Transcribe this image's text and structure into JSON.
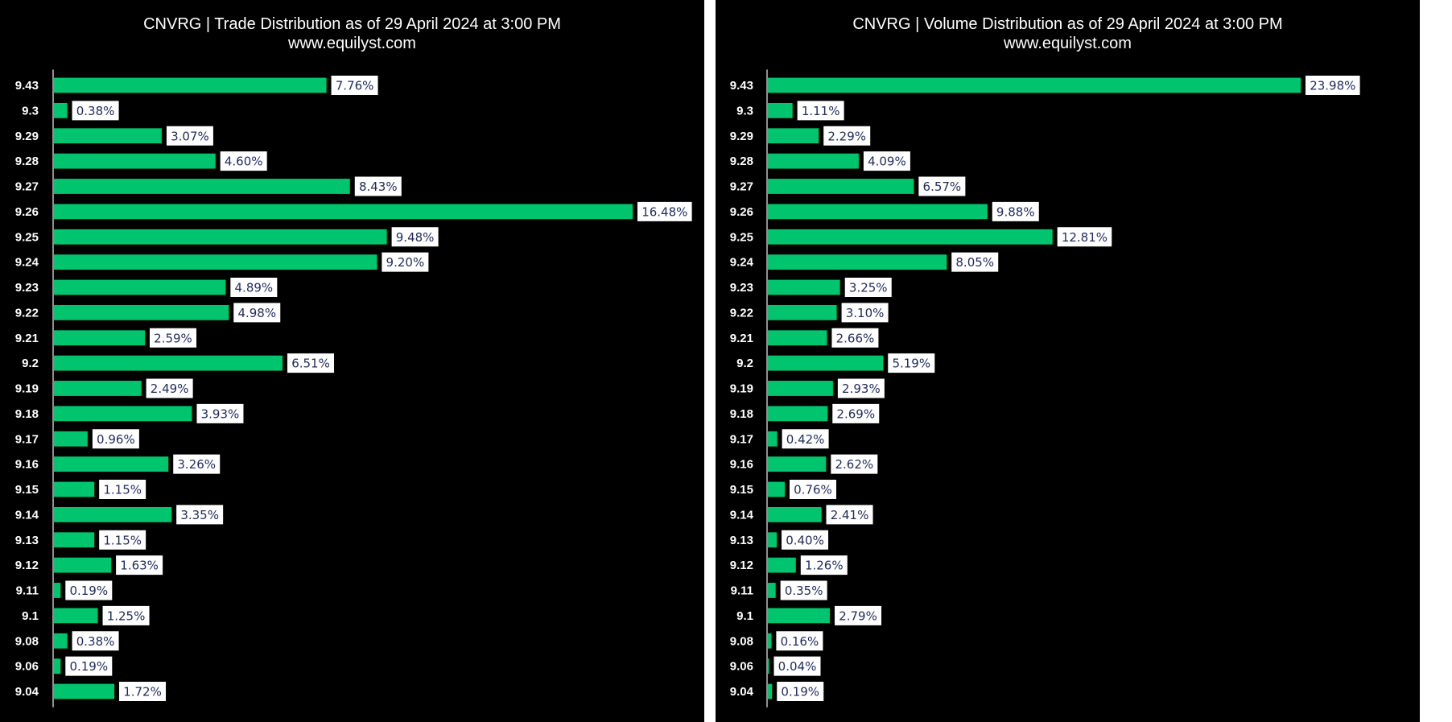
{
  "chart_data": [
    {
      "type": "bar",
      "orientation": "horizontal",
      "title": "CNVRG | Trade Distribution as of 29 April 2024 at 3:00 PM",
      "subtitle": "www.equilyst.com",
      "categories": [
        "9.43",
        "9.3",
        "9.29",
        "9.28",
        "9.27",
        "9.26",
        "9.25",
        "9.24",
        "9.23",
        "9.22",
        "9.21",
        "9.2",
        "9.19",
        "9.18",
        "9.17",
        "9.16",
        "9.15",
        "9.14",
        "9.13",
        "9.12",
        "9.11",
        "9.1",
        "9.08",
        "9.06",
        "9.04"
      ],
      "values": [
        7.76,
        0.38,
        3.07,
        4.6,
        8.43,
        16.48,
        9.48,
        9.2,
        4.89,
        4.98,
        2.59,
        6.51,
        2.49,
        3.93,
        0.96,
        3.26,
        1.15,
        3.35,
        1.15,
        1.63,
        0.19,
        1.25,
        0.38,
        0.19,
        1.72
      ],
      "data_labels": [
        "7.76%",
        "0.38%",
        "3.07%",
        "4.60%",
        "8.43%",
        "16.48%",
        "9.48%",
        "9.20%",
        "4.89%",
        "4.98%",
        "2.59%",
        "6.51%",
        "2.49%",
        "3.93%",
        "0.96%",
        "3.26%",
        "1.15%",
        "3.35%",
        "1.15%",
        "1.63%",
        "0.19%",
        "1.25%",
        "0.38%",
        "0.19%",
        "1.72%"
      ],
      "xlim": [
        0,
        16.48
      ],
      "grid": false,
      "legend": "none",
      "bar_color": "#00c46e"
    },
    {
      "type": "bar",
      "orientation": "horizontal",
      "title": "CNVRG | Volume Distribution as of 29 April 2024 at 3:00 PM",
      "subtitle": "www.equilyst.com",
      "categories": [
        "9.43",
        "9.3",
        "9.29",
        "9.28",
        "9.27",
        "9.26",
        "9.25",
        "9.24",
        "9.23",
        "9.22",
        "9.21",
        "9.2",
        "9.19",
        "9.18",
        "9.17",
        "9.16",
        "9.15",
        "9.14",
        "9.13",
        "9.12",
        "9.11",
        "9.1",
        "9.08",
        "9.06",
        "9.04"
      ],
      "values": [
        23.98,
        1.11,
        2.29,
        4.09,
        6.57,
        9.88,
        12.81,
        8.05,
        3.25,
        3.1,
        2.66,
        5.19,
        2.93,
        2.69,
        0.42,
        2.62,
        0.76,
        2.41,
        0.4,
        1.26,
        0.35,
        2.79,
        0.16,
        0.04,
        0.19
      ],
      "data_labels": [
        "23.98%",
        "1.11%",
        "2.29%",
        "4.09%",
        "6.57%",
        "9.88%",
        "12.81%",
        "8.05%",
        "3.25%",
        "3.10%",
        "2.66%",
        "5.19%",
        "2.93%",
        "2.69%",
        "0.42%",
        "2.62%",
        "0.76%",
        "2.41%",
        "0.40%",
        "1.26%",
        "0.35%",
        "2.79%",
        "0.16%",
        "0.04%",
        "0.19%"
      ],
      "xlim": [
        0,
        23.98
      ],
      "grid": false,
      "legend": "none",
      "bar_color": "#00c46e"
    }
  ]
}
